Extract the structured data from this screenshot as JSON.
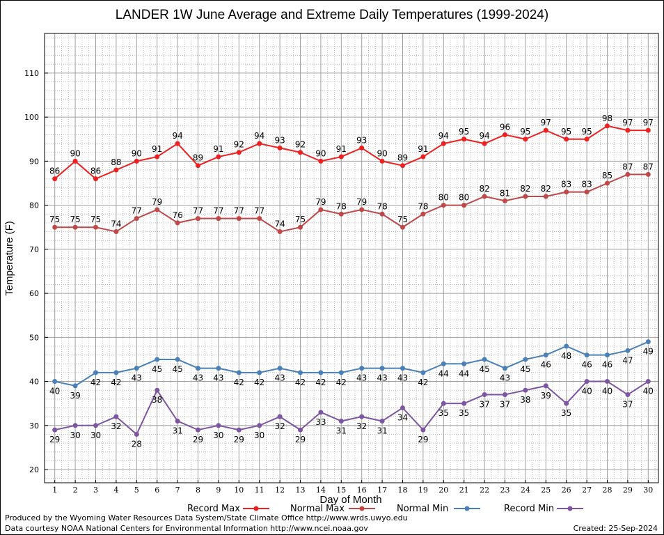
{
  "chart_data": {
    "type": "line",
    "title": "LANDER 1W June Average and Extreme Daily Temperatures (1999-2024)",
    "xlabel": "Day of Month",
    "ylabel": "Temperature (F)",
    "x": [
      1,
      2,
      3,
      4,
      5,
      6,
      7,
      8,
      9,
      10,
      11,
      12,
      13,
      14,
      15,
      16,
      17,
      18,
      19,
      20,
      21,
      22,
      23,
      24,
      25,
      26,
      27,
      28,
      29,
      30
    ],
    "xlim": [
      0.5,
      30.5
    ],
    "ylim": [
      17,
      119
    ],
    "yticks": [
      20,
      30,
      40,
      50,
      60,
      70,
      80,
      90,
      100,
      110
    ],
    "grid": true,
    "legend_position": "bottom",
    "series": [
      {
        "name": "Record Max",
        "color": "#ee2020",
        "label_position": "above",
        "values": [
          86,
          90,
          86,
          88,
          90,
          91,
          94,
          89,
          91,
          92,
          94,
          93,
          92,
          90,
          91,
          93,
          90,
          89,
          91,
          94,
          95,
          94,
          96,
          95,
          97,
          95,
          95,
          98,
          97,
          97
        ]
      },
      {
        "name": "Normal Max",
        "color": "#c04848",
        "label_position": "above",
        "values": [
          75,
          75,
          75,
          74,
          77,
          79,
          76,
          77,
          77,
          77,
          77,
          74,
          75,
          79,
          78,
          79,
          78,
          75,
          78,
          80,
          80,
          82,
          81,
          82,
          82,
          83,
          83,
          85,
          87,
          87
        ]
      },
      {
        "name": "Normal Min",
        "color": "#4a80b8",
        "label_position": "below",
        "values": [
          40,
          39,
          42,
          42,
          43,
          45,
          45,
          43,
          43,
          42,
          42,
          43,
          42,
          42,
          42,
          43,
          43,
          43,
          42,
          44,
          44,
          45,
          43,
          45,
          46,
          48,
          46,
          46,
          47,
          49
        ]
      },
      {
        "name": "Record Min",
        "color": "#7d55a0",
        "label_position": "below",
        "values": [
          29,
          30,
          30,
          32,
          28,
          38,
          31,
          29,
          30,
          29,
          30,
          32,
          29,
          33,
          31,
          32,
          31,
          34,
          29,
          35,
          35,
          37,
          37,
          38,
          39,
          35,
          40,
          40,
          37,
          40
        ]
      }
    ]
  },
  "footer": {
    "produced_by": "Produced by the Wyoming Water Resources Data System/State Climate Office http://www.wrds.uwyo.edu",
    "data_courtesy": "Data courtesy NOAA National Centers for Environmental Information http://www.ncei.noaa.gov",
    "created": "Created: 25-Sep-2024"
  }
}
